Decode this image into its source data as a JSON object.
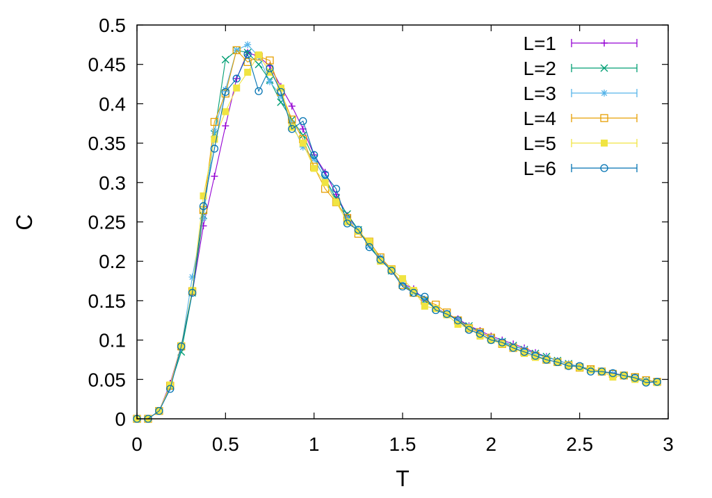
{
  "chart_data": {
    "type": "line",
    "xlabel": "T",
    "ylabel": "C",
    "xlim": [
      0,
      3
    ],
    "ylim": [
      0,
      0.5
    ],
    "xticks": [
      "0",
      "0.5",
      "1",
      "1.5",
      "2",
      "2.5",
      "3"
    ],
    "yticks": [
      "0",
      "0.05",
      "0.1",
      "0.15",
      "0.2",
      "0.25",
      "0.3",
      "0.35",
      "0.4",
      "0.45",
      "0.5"
    ],
    "grid": false,
    "legend": "top-right",
    "x": [
      0.0,
      0.0625,
      0.125,
      0.1875,
      0.25,
      0.3125,
      0.375,
      0.4375,
      0.5,
      0.5625,
      0.625,
      0.6875,
      0.75,
      0.8125,
      0.875,
      0.9375,
      1.0,
      1.0625,
      1.125,
      1.1875,
      1.25,
      1.3125,
      1.375,
      1.4375,
      1.5,
      1.5625,
      1.625,
      1.6875,
      1.75,
      1.8125,
      1.875,
      1.9375,
      2.0,
      2.0625,
      2.125,
      2.1875,
      2.25,
      2.3125,
      2.375,
      2.4375,
      2.5,
      2.5625,
      2.625,
      2.6875,
      2.75,
      2.8125,
      2.875,
      2.9375
    ],
    "series": [
      {
        "name": "L=1",
        "color": "#9400d3",
        "marker": "plus",
        "values": [
          0.0,
          0.0,
          0.01,
          0.045,
          0.093,
          0.16,
          0.245,
          0.308,
          0.372,
          0.432,
          0.465,
          0.46,
          0.448,
          0.422,
          0.397,
          0.368,
          0.335,
          0.313,
          0.285,
          0.258,
          0.24,
          0.22,
          0.203,
          0.188,
          0.172,
          0.165,
          0.15,
          0.141,
          0.133,
          0.127,
          0.118,
          0.112,
          0.105,
          0.1,
          0.095,
          0.09,
          0.084,
          0.079,
          0.074,
          0.07,
          0.066,
          0.063,
          0.06,
          0.058,
          0.055,
          0.052,
          0.049,
          0.047
        ]
      },
      {
        "name": "L=2",
        "color": "#009e73",
        "marker": "x",
        "values": [
          0.0,
          0.0,
          0.01,
          0.042,
          0.085,
          0.16,
          0.258,
          0.362,
          0.456,
          0.468,
          0.465,
          0.45,
          0.43,
          0.402,
          0.38,
          0.36,
          0.33,
          0.305,
          0.28,
          0.26,
          0.24,
          0.22,
          0.202,
          0.188,
          0.172,
          0.16,
          0.15,
          0.14,
          0.133,
          0.125,
          0.118,
          0.11,
          0.103,
          0.098,
          0.093,
          0.088,
          0.083,
          0.079,
          0.074,
          0.07,
          0.066,
          0.063,
          0.06,
          0.057,
          0.055,
          0.052,
          0.049,
          0.047
        ]
      },
      {
        "name": "L=3",
        "color": "#56b4e9",
        "marker": "star",
        "values": [
          0.0,
          0.0,
          0.01,
          0.04,
          0.09,
          0.18,
          0.255,
          0.365,
          0.418,
          0.468,
          0.475,
          0.46,
          0.428,
          0.41,
          0.375,
          0.345,
          0.33,
          0.305,
          0.275,
          0.255,
          0.24,
          0.22,
          0.205,
          0.188,
          0.172,
          0.162,
          0.152,
          0.14,
          0.133,
          0.125,
          0.117,
          0.11,
          0.103,
          0.098,
          0.092,
          0.088,
          0.082,
          0.078,
          0.074,
          0.07,
          0.066,
          0.062,
          0.06,
          0.057,
          0.054,
          0.052,
          0.049,
          0.047
        ]
      },
      {
        "name": "L=4",
        "color": "#e69f00",
        "marker": "open-square",
        "values": [
          0.0,
          0.0,
          0.01,
          0.042,
          0.092,
          0.162,
          0.265,
          0.377,
          0.413,
          0.468,
          0.453,
          0.46,
          0.455,
          0.415,
          0.38,
          0.355,
          0.32,
          0.292,
          0.275,
          0.255,
          0.235,
          0.225,
          0.205,
          0.19,
          0.17,
          0.16,
          0.15,
          0.145,
          0.135,
          0.125,
          0.115,
          0.11,
          0.103,
          0.095,
          0.09,
          0.085,
          0.08,
          0.075,
          0.072,
          0.068,
          0.065,
          0.063,
          0.06,
          0.057,
          0.055,
          0.053,
          0.049,
          0.047
        ]
      },
      {
        "name": "L=5",
        "color": "#f0e442",
        "marker": "filled-square",
        "values": [
          0.0,
          0.0,
          0.01,
          0.043,
          0.093,
          0.163,
          0.283,
          0.355,
          0.39,
          0.42,
          0.44,
          0.462,
          0.44,
          0.42,
          0.37,
          0.35,
          0.318,
          0.3,
          0.275,
          0.25,
          0.238,
          0.225,
          0.2,
          0.19,
          0.178,
          0.163,
          0.143,
          0.14,
          0.132,
          0.12,
          0.115,
          0.105,
          0.1,
          0.095,
          0.09,
          0.083,
          0.078,
          0.075,
          0.072,
          0.068,
          0.065,
          0.062,
          0.06,
          0.053,
          0.055,
          0.05,
          0.047,
          0.046
        ]
      },
      {
        "name": "L=6",
        "color": "#0072b2",
        "marker": "open-circle",
        "values": [
          0.0,
          0.0,
          0.01,
          0.038,
          0.092,
          0.16,
          0.27,
          0.343,
          0.415,
          0.432,
          0.463,
          0.416,
          0.445,
          0.415,
          0.368,
          0.378,
          0.335,
          0.31,
          0.292,
          0.248,
          0.24,
          0.218,
          0.202,
          0.188,
          0.168,
          0.16,
          0.155,
          0.138,
          0.133,
          0.125,
          0.113,
          0.108,
          0.1,
          0.097,
          0.09,
          0.085,
          0.08,
          0.075,
          0.072,
          0.067,
          0.067,
          0.06,
          0.06,
          0.058,
          0.055,
          0.052,
          0.046,
          0.047
        ]
      }
    ]
  }
}
